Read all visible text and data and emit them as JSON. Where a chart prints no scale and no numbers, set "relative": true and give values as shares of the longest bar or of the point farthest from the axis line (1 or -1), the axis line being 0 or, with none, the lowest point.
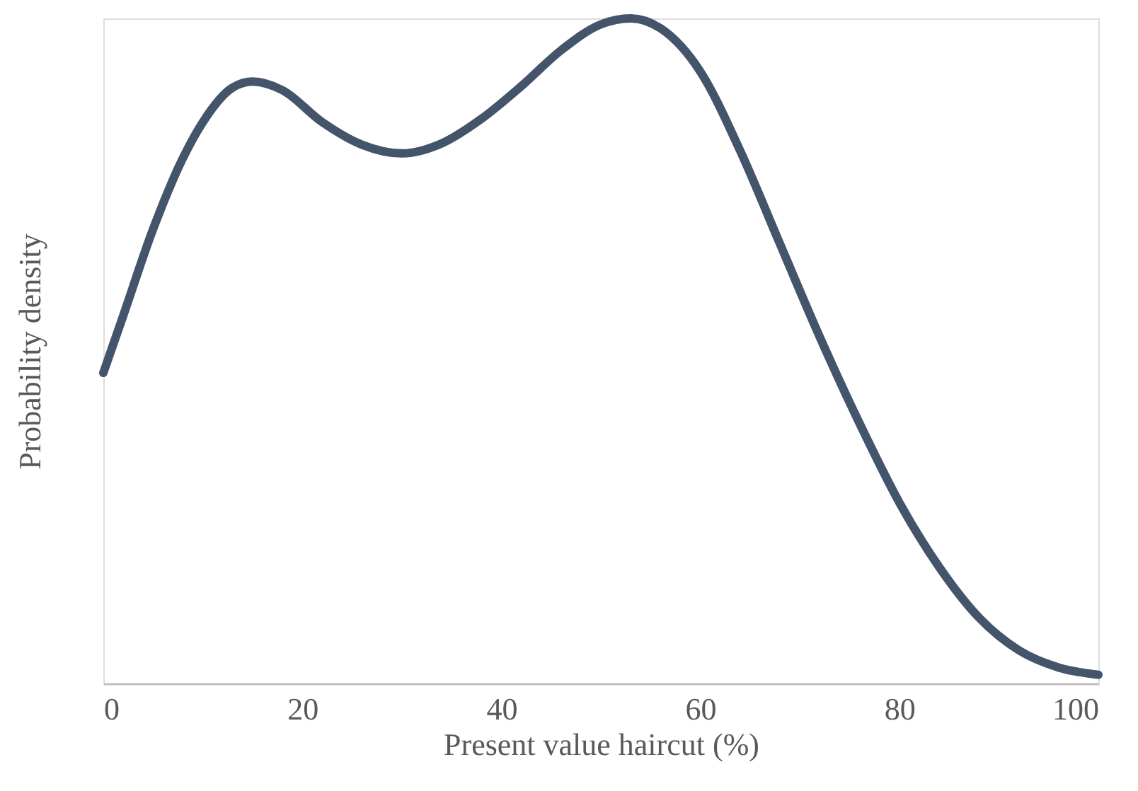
{
  "chart_data": {
    "type": "line",
    "relative": true,
    "xlabel": "Present value haircut (%)",
    "ylabel": "Probability density",
    "xlim": [
      0,
      100
    ],
    "xticks": [
      0,
      20,
      40,
      60,
      80,
      100
    ],
    "grid": false,
    "marker": "none",
    "line_style": "solid",
    "x": [
      0,
      2,
      5,
      8,
      10,
      13,
      15,
      18,
      22,
      26,
      30,
      34,
      38,
      42,
      46,
      50,
      53,
      56,
      60,
      64,
      68,
      72,
      76,
      80,
      84,
      88,
      92,
      96,
      100
    ],
    "series": [
      {
        "color": "#44546a",
        "values": [
          0.467,
          0.553,
          0.683,
          0.79,
          0.844,
          0.896,
          0.905,
          0.892,
          0.844,
          0.81,
          0.797,
          0.812,
          0.849,
          0.898,
          0.952,
          0.991,
          1.0,
          0.985,
          0.92,
          0.801,
          0.661,
          0.521,
          0.391,
          0.272,
          0.175,
          0.099,
          0.05,
          0.024,
          0.013
        ]
      }
    ]
  }
}
